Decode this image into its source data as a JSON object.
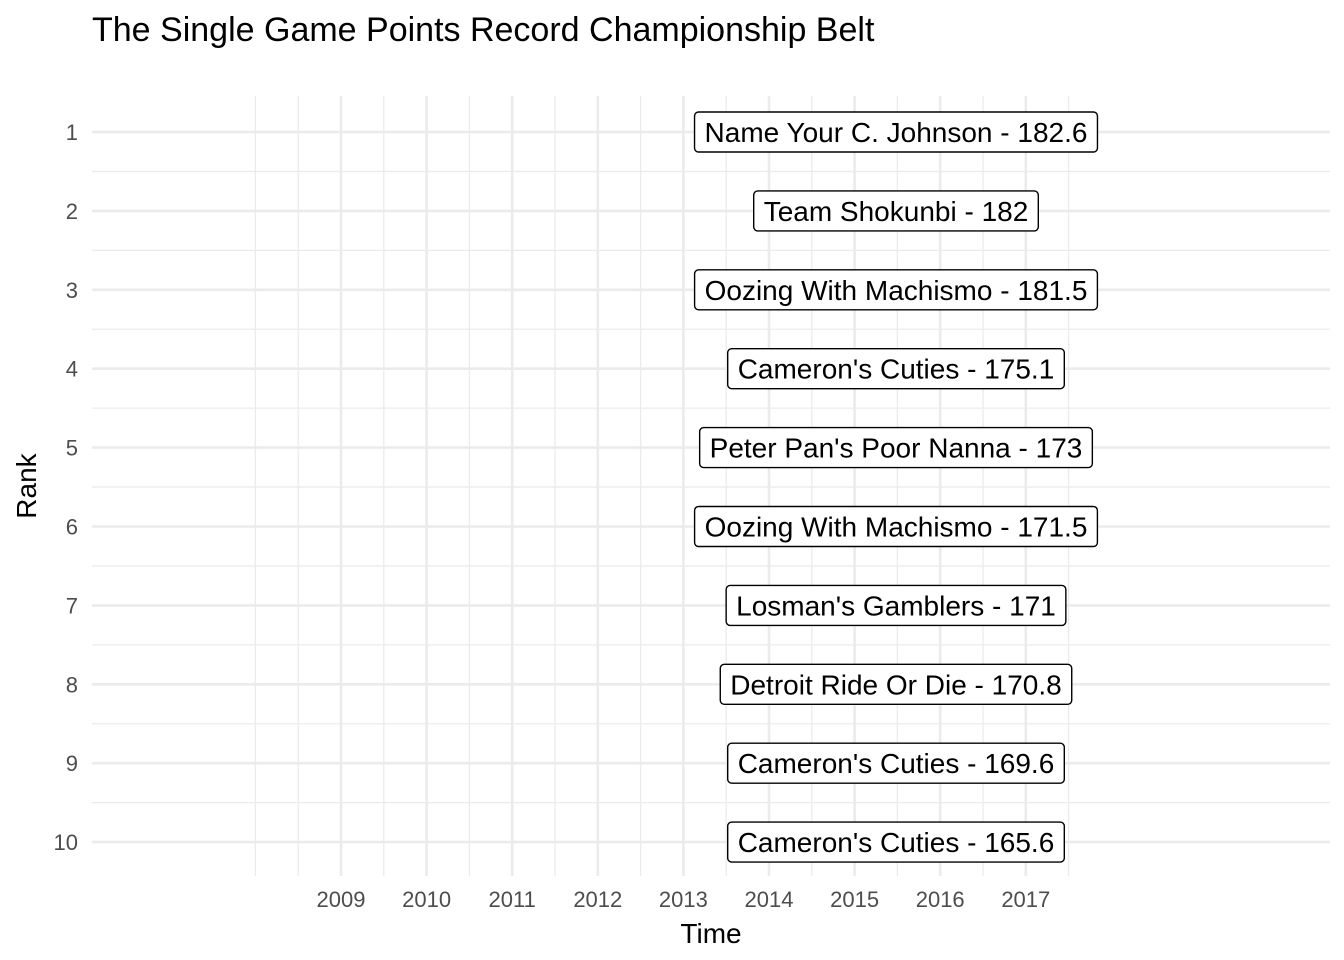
{
  "chart_data": {
    "type": "table",
    "title": "The Single Game Points Record Championship Belt",
    "xlabel": "Time",
    "ylabel": "Rank",
    "x_ticks": [
      "2009",
      "2010",
      "2011",
      "2012",
      "2013",
      "2014",
      "2015",
      "2016",
      "2017"
    ],
    "y_ticks": [
      "1",
      "2",
      "3",
      "4",
      "5",
      "6",
      "7",
      "8",
      "9",
      "10"
    ],
    "grid": true,
    "legend": "none",
    "entries": [
      {
        "rank": 1,
        "label": "Name Your C. Johnson - 182.6",
        "team": "Name Your C. Johnson",
        "points": 182.6
      },
      {
        "rank": 2,
        "label": "Team Shokunbi - 182",
        "team": "Team Shokunbi",
        "points": 182
      },
      {
        "rank": 3,
        "label": "Oozing With Machismo - 181.5",
        "team": "Oozing With Machismo",
        "points": 181.5
      },
      {
        "rank": 4,
        "label": "Cameron's Cuties - 175.1",
        "team": "Cameron's Cuties",
        "points": 175.1
      },
      {
        "rank": 5,
        "label": "Peter Pan's Poor Nanna - 173",
        "team": "Peter Pan's Poor Nanna",
        "points": 173
      },
      {
        "rank": 6,
        "label": "Oozing With Machismo - 171.5",
        "team": "Oozing With Machismo",
        "points": 171.5
      },
      {
        "rank": 7,
        "label": "Losman's Gamblers - 171",
        "team": "Losman's Gamblers",
        "points": 171
      },
      {
        "rank": 8,
        "label": "Detroit Ride Or Die - 170.8",
        "team": "Detroit Ride Or Die",
        "points": 170.8
      },
      {
        "rank": 9,
        "label": "Cameron's Cuties - 169.6",
        "team": "Cameron's Cuties",
        "points": 169.6
      },
      {
        "rank": 10,
        "label": "Cameron's Cuties - 165.6",
        "team": "Cameron's Cuties",
        "points": 165.6
      }
    ]
  }
}
